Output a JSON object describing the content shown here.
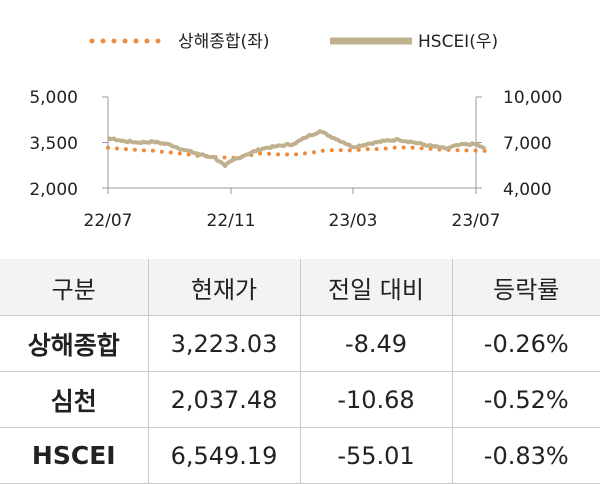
{
  "chart_data": {
    "type": "line",
    "x_ticks": [
      "22/07",
      "22/11",
      "23/03",
      "23/07"
    ],
    "y_left": {
      "ticks": [
        "5,000",
        "3,500",
        "2,000"
      ],
      "ylim": [
        2000,
        5000
      ]
    },
    "y_right": {
      "ticks": [
        "10,000",
        "7,000",
        "4,000"
      ],
      "ylim": [
        4000,
        10000
      ]
    },
    "series": [
      {
        "name": "상해종합(좌)",
        "axis": "left",
        "style": "dotted",
        "color": "#ee8a3a",
        "x": [
          "2022-07-01",
          "2022-07-15",
          "2022-08-01",
          "2022-08-15",
          "2022-09-01",
          "2022-09-15",
          "2022-10-01",
          "2022-10-15",
          "2022-11-01",
          "2022-11-15",
          "2022-12-01",
          "2022-12-15",
          "2023-01-01",
          "2023-01-15",
          "2023-02-01",
          "2023-02-15",
          "2023-03-01",
          "2023-03-15",
          "2023-04-01",
          "2023-04-15",
          "2023-05-01",
          "2023-05-15",
          "2023-06-01",
          "2023-06-15",
          "2023-07-01",
          "2023-07-10"
        ],
        "values": [
          3330,
          3290,
          3250,
          3230,
          3170,
          3120,
          3050,
          3020,
          2990,
          3060,
          3150,
          3110,
          3100,
          3150,
          3240,
          3250,
          3240,
          3280,
          3300,
          3340,
          3330,
          3300,
          3260,
          3240,
          3230,
          3223
        ]
      },
      {
        "name": "HSCEI(우)",
        "axis": "right",
        "style": "solid",
        "color": "#bfb08e",
        "x": [
          "2022-07-01",
          "2022-07-15",
          "2022-08-01",
          "2022-08-15",
          "2022-09-01",
          "2022-09-15",
          "2022-10-01",
          "2022-10-15",
          "2022-10-25",
          "2022-11-01",
          "2022-11-15",
          "2022-12-01",
          "2022-12-15",
          "2023-01-01",
          "2023-01-15",
          "2023-01-27",
          "2023-02-10",
          "2023-02-20",
          "2023-03-01",
          "2023-03-15",
          "2023-04-01",
          "2023-04-15",
          "2023-05-01",
          "2023-05-15",
          "2023-06-01",
          "2023-06-15",
          "2023-07-01",
          "2023-07-10"
        ],
        "values": [
          7300,
          7100,
          7000,
          7050,
          6850,
          6500,
          6200,
          6000,
          5450,
          5800,
          6200,
          6600,
          6750,
          6900,
          7400,
          7750,
          7300,
          7000,
          6700,
          6900,
          7100,
          7200,
          7000,
          6800,
          6600,
          6850,
          6900,
          6549
        ]
      }
    ]
  },
  "legend": [
    {
      "label": "상해종합(좌)"
    },
    {
      "label": "HSCEI(우)"
    }
  ],
  "table": {
    "headers": [
      "구분",
      "현재가",
      "전일 대비",
      "등락률"
    ],
    "rows": [
      {
        "name": "상해종합",
        "price": "3,223.03",
        "change": "-8.49",
        "rate": "-0.26%"
      },
      {
        "name": "심천",
        "price": "2,037.48",
        "change": "-10.68",
        "rate": "-0.52%"
      },
      {
        "name": "HSCEI",
        "price": "6,549.19",
        "change": "-55.01",
        "rate": "-0.83%"
      }
    ]
  }
}
